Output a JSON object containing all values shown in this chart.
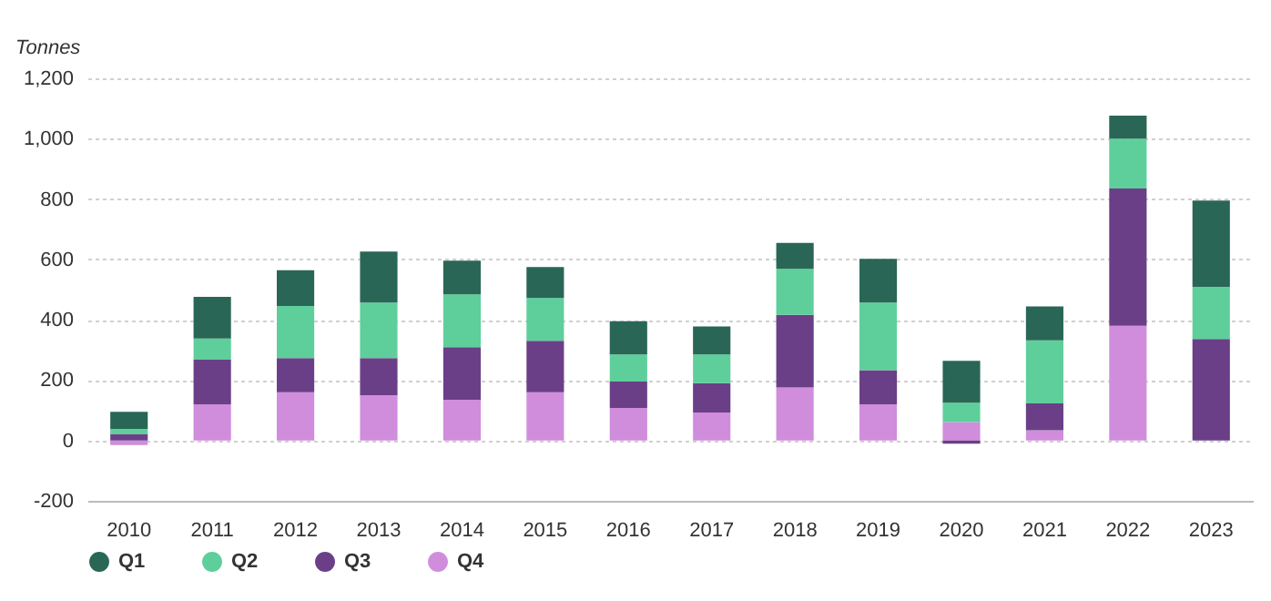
{
  "chart_data": {
    "type": "bar",
    "stacked": true,
    "ylabel": "Tonnes",
    "categories": [
      "2010",
      "2011",
      "2012",
      "2013",
      "2014",
      "2015",
      "2016",
      "2017",
      "2018",
      "2019",
      "2020",
      "2021",
      "2022",
      "2023"
    ],
    "series": [
      {
        "name": "Q4",
        "color": "#d08ddc",
        "values": [
          -15,
          120,
          160,
          150,
          135,
          160,
          108,
          93,
          176,
          120,
          61,
          34,
          380,
          0
        ]
      },
      {
        "name": "Q3",
        "color": "#6b3f87",
        "values": [
          22,
          148,
          113,
          123,
          174,
          170,
          87,
          97,
          240,
          113,
          -11,
          89,
          455,
          336
        ]
      },
      {
        "name": "Q2",
        "color": "#5ecf9b",
        "values": [
          16,
          70,
          173,
          184,
          175,
          142,
          90,
          95,
          153,
          224,
          64,
          209,
          165,
          173
        ]
      },
      {
        "name": "Q1",
        "color": "#2a6656",
        "values": [
          57,
          138,
          118,
          169,
          112,
          103,
          110,
          93,
          86,
          145,
          139,
          112,
          76,
          286
        ]
      }
    ],
    "ylim": [
      -200,
      1200
    ],
    "yticks": [
      {
        "value": -200,
        "label": "-200"
      },
      {
        "value": 0,
        "label": "0"
      },
      {
        "value": 200,
        "label": "200"
      },
      {
        "value": 400,
        "label": "400"
      },
      {
        "value": 600,
        "label": "600"
      },
      {
        "value": 800,
        "label": "800"
      },
      {
        "value": 1000,
        "label": "1,000"
      },
      {
        "value": 1200,
        "label": "1,200"
      }
    ],
    "grid": "y",
    "legend": "bottom left"
  }
}
